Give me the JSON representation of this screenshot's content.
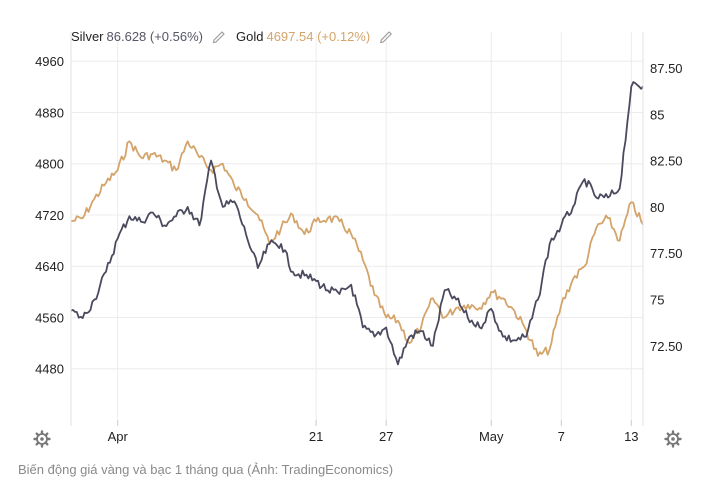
{
  "chart_data": {
    "type": "line",
    "legend": [
      {
        "name": "Silver",
        "value": "86.628",
        "change": "(+0.56%)",
        "color": "#4a4a5e"
      },
      {
        "name": "Gold",
        "value": "4697.54",
        "change": "(+0.12%)",
        "color": "#d4a46a"
      }
    ],
    "x_ticks": [
      {
        "label": "Apr",
        "day": 4
      },
      {
        "label": "21",
        "day": 21
      },
      {
        "label": "27",
        "day": 27
      },
      {
        "label": "May",
        "day": 36
      },
      {
        "label": "7",
        "day": 42
      },
      {
        "label": "13",
        "day": 48
      }
    ],
    "x_domain": [
      0,
      49
    ],
    "y_left": {
      "ticks": [
        "4960",
        "4880",
        "4800",
        "4720",
        "4640",
        "4560",
        "4480"
      ],
      "range": [
        4400,
        4990
      ]
    },
    "y_right": {
      "ticks": [
        "87.50",
        "85",
        "82.50",
        "80",
        "77.50",
        "75",
        "72.50"
      ],
      "range": [
        68.5,
        88.9
      ]
    },
    "series": [
      {
        "name": "Gold",
        "axis": "left",
        "color": "#d4a46a",
        "x": [
          0,
          1,
          2,
          3,
          4,
          5,
          6,
          7,
          8,
          9,
          10,
          11,
          12,
          13,
          14,
          15,
          16,
          17,
          18,
          19,
          20,
          21,
          22,
          23,
          24,
          25,
          26,
          27,
          28,
          29,
          30,
          31,
          32,
          33,
          34,
          35,
          36,
          37,
          38,
          39,
          40,
          41,
          42,
          43,
          44,
          45,
          46,
          47,
          48,
          49
        ],
        "values": [
          4710,
          4715,
          4745,
          4770,
          4790,
          4835,
          4810,
          4815,
          4805,
          4790,
          4835,
          4810,
          4790,
          4800,
          4765,
          4745,
          4720,
          4675,
          4700,
          4720,
          4690,
          4710,
          4715,
          4710,
          4690,
          4650,
          4595,
          4560,
          4555,
          4520,
          4545,
          4590,
          4560,
          4575,
          4580,
          4575,
          4600,
          4590,
          4570,
          4540,
          4500,
          4510,
          4580,
          4620,
          4640,
          4700,
          4715,
          4680,
          4740,
          4705
        ]
      },
      {
        "name": "Silver",
        "axis": "right",
        "color": "#4a4a5e",
        "x": [
          0,
          1,
          2,
          3,
          4,
          5,
          6,
          7,
          8,
          9,
          10,
          11,
          12,
          13,
          14,
          15,
          16,
          17,
          18,
          19,
          20,
          21,
          22,
          23,
          24,
          25,
          26,
          27,
          28,
          29,
          30,
          31,
          32,
          33,
          34,
          35,
          36,
          37,
          38,
          39,
          40,
          41,
          42,
          43,
          44,
          45,
          46,
          47,
          48,
          49
        ],
        "values": [
          74.4,
          74.0,
          75.0,
          76.5,
          78.3,
          79.5,
          79.2,
          79.7,
          79.0,
          79.5,
          80.0,
          79.0,
          82.5,
          80.0,
          80.3,
          78.5,
          76.7,
          78.0,
          78.0,
          76.5,
          76.3,
          76.0,
          75.5,
          75.3,
          75.8,
          73.5,
          73.0,
          73.5,
          71.5,
          73.0,
          73.3,
          72.5,
          75.5,
          75.0,
          74.0,
          73.5,
          74.5,
          73.0,
          72.8,
          73.0,
          75.0,
          78.0,
          79.0,
          80.0,
          81.5,
          80.5,
          80.5,
          81.0,
          86.5,
          86.5
        ]
      }
    ]
  },
  "caption": "Biến động giá vàng và bạc 1 tháng qua (Ảnh: TradingEconomics)"
}
